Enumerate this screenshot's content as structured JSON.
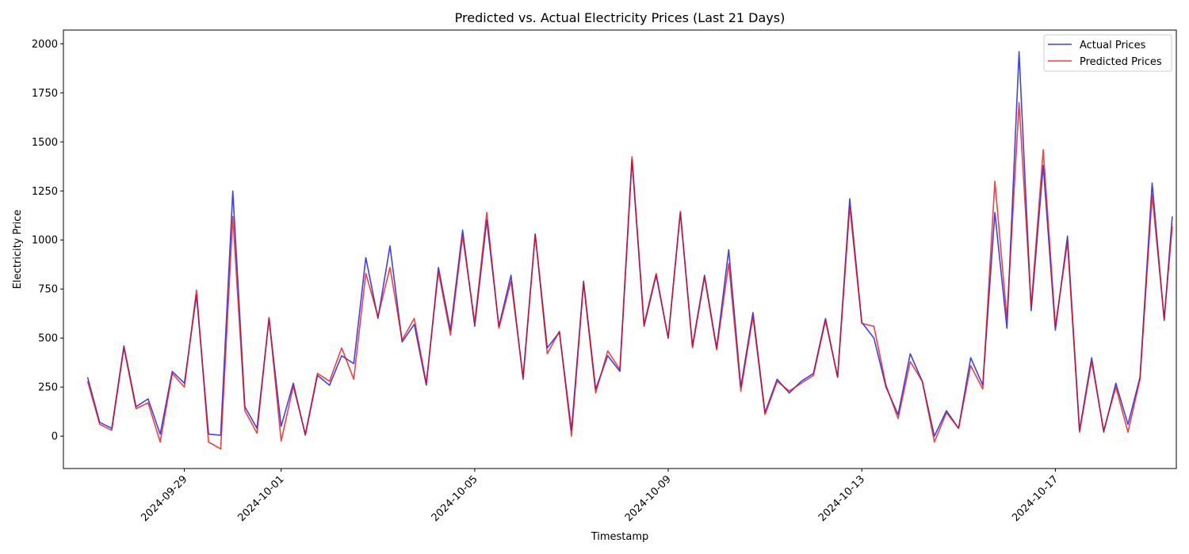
{
  "chart_data": {
    "type": "line",
    "title": "Predicted vs. Actual Electricity Prices (Last 21 Days)",
    "xlabel": "Timestamp",
    "ylabel": "Electricity Price",
    "x_axis": {
      "type": "date",
      "range": [
        "2024-09-26T12:00",
        "2024-10-19T12:00"
      ],
      "ticks": [
        "2024-09-29",
        "2024-10-01",
        "2024-10-05",
        "2024-10-09",
        "2024-10-13",
        "2024-10-17"
      ]
    },
    "y_axis": {
      "range": [
        -165,
        2070
      ],
      "ticks": [
        0,
        250,
        500,
        750,
        1000,
        1250,
        1500,
        1750,
        2000
      ]
    },
    "legend": {
      "position": "top-right"
    },
    "grid": false,
    "series": [
      {
        "name": "Actual Prices",
        "color": "#0000ee",
        "points": [
          [
            "2024-09-27T00:00",
            300
          ],
          [
            "2024-09-27T06:00",
            70
          ],
          [
            "2024-09-27T12:00",
            40
          ],
          [
            "2024-09-27T18:00",
            460
          ],
          [
            "2024-09-28T00:00",
            150
          ],
          [
            "2024-09-28T06:00",
            190
          ],
          [
            "2024-09-28T12:00",
            10
          ],
          [
            "2024-09-28T18:00",
            330
          ],
          [
            "2024-09-29T00:00",
            270
          ],
          [
            "2024-09-29T06:00",
            720
          ],
          [
            "2024-09-29T12:00",
            10
          ],
          [
            "2024-09-29T18:00",
            5
          ],
          [
            "2024-09-30T00:00",
            1250
          ],
          [
            "2024-09-30T06:00",
            150
          ],
          [
            "2024-09-30T12:00",
            40
          ],
          [
            "2024-09-30T18:00",
            600
          ],
          [
            "2024-10-01T00:00",
            50
          ],
          [
            "2024-10-01T06:00",
            270
          ],
          [
            "2024-10-01T12:00",
            5
          ],
          [
            "2024-10-01T18:00",
            310
          ],
          [
            "2024-10-02T00:00",
            260
          ],
          [
            "2024-10-02T06:00",
            410
          ],
          [
            "2024-10-02T12:00",
            370
          ],
          [
            "2024-10-02T18:00",
            910
          ],
          [
            "2024-10-03T00:00",
            600
          ],
          [
            "2024-10-03T06:00",
            970
          ],
          [
            "2024-10-03T12:00",
            480
          ],
          [
            "2024-10-03T18:00",
            570
          ],
          [
            "2024-10-04T00:00",
            260
          ],
          [
            "2024-10-04T06:00",
            860
          ],
          [
            "2024-10-04T12:00",
            540
          ],
          [
            "2024-10-04T18:00",
            1050
          ],
          [
            "2024-10-05T00:00",
            560
          ],
          [
            "2024-10-05T06:00",
            1100
          ],
          [
            "2024-10-05T12:00",
            560
          ],
          [
            "2024-10-05T18:00",
            820
          ],
          [
            "2024-10-06T00:00",
            290
          ],
          [
            "2024-10-06T06:00",
            1030
          ],
          [
            "2024-10-06T12:00",
            450
          ],
          [
            "2024-10-06T18:00",
            530
          ],
          [
            "2024-10-07T00:00",
            30
          ],
          [
            "2024-10-07T06:00",
            790
          ],
          [
            "2024-10-07T12:00",
            240
          ],
          [
            "2024-10-07T18:00",
            410
          ],
          [
            "2024-10-08T00:00",
            330
          ],
          [
            "2024-10-08T06:00",
            1410
          ],
          [
            "2024-10-08T12:00",
            560
          ],
          [
            "2024-10-08T18:00",
            820
          ],
          [
            "2024-10-09T00:00",
            500
          ],
          [
            "2024-10-09T06:00",
            1140
          ],
          [
            "2024-10-09T12:00",
            460
          ],
          [
            "2024-10-09T18:00",
            820
          ],
          [
            "2024-10-10T00:00",
            450
          ],
          [
            "2024-10-10T06:00",
            950
          ],
          [
            "2024-10-10T12:00",
            250
          ],
          [
            "2024-10-10T18:00",
            630
          ],
          [
            "2024-10-11T00:00",
            120
          ],
          [
            "2024-10-11T06:00",
            290
          ],
          [
            "2024-10-11T12:00",
            220
          ],
          [
            "2024-10-11T18:00",
            280
          ],
          [
            "2024-10-12T00:00",
            320
          ],
          [
            "2024-10-12T06:00",
            600
          ],
          [
            "2024-10-12T12:00",
            300
          ],
          [
            "2024-10-12T18:00",
            1210
          ],
          [
            "2024-10-13T00:00",
            580
          ],
          [
            "2024-10-13T06:00",
            500
          ],
          [
            "2024-10-13T12:00",
            250
          ],
          [
            "2024-10-13T18:00",
            110
          ],
          [
            "2024-10-14T00:00",
            420
          ],
          [
            "2024-10-14T06:00",
            280
          ],
          [
            "2024-10-14T12:00",
            0
          ],
          [
            "2024-10-14T18:00",
            130
          ],
          [
            "2024-10-15T00:00",
            40
          ],
          [
            "2024-10-15T06:00",
            400
          ],
          [
            "2024-10-15T12:00",
            260
          ],
          [
            "2024-10-15T18:00",
            1140
          ],
          [
            "2024-10-16T00:00",
            550
          ],
          [
            "2024-10-16T06:00",
            1960
          ],
          [
            "2024-10-16T12:00",
            640
          ],
          [
            "2024-10-16T18:00",
            1380
          ],
          [
            "2024-10-17T00:00",
            540
          ],
          [
            "2024-10-17T06:00",
            1020
          ],
          [
            "2024-10-17T12:00",
            30
          ],
          [
            "2024-10-17T18:00",
            400
          ],
          [
            "2024-10-18T00:00",
            20
          ],
          [
            "2024-10-18T06:00",
            270
          ],
          [
            "2024-10-18T12:00",
            60
          ],
          [
            "2024-10-18T18:00",
            300
          ],
          [
            "2024-10-19T00:00",
            1290
          ],
          [
            "2024-10-19T06:00",
            590
          ],
          [
            "2024-10-19T10:00",
            1120
          ]
        ]
      },
      {
        "name": "Predicted Prices",
        "color": "#ee0000",
        "points": [
          [
            "2024-09-27T00:00",
            280
          ],
          [
            "2024-09-27T06:00",
            60
          ],
          [
            "2024-09-27T12:00",
            30
          ],
          [
            "2024-09-27T18:00",
            450
          ],
          [
            "2024-09-28T00:00",
            140
          ],
          [
            "2024-09-28T06:00",
            170
          ],
          [
            "2024-09-28T12:00",
            -30
          ],
          [
            "2024-09-28T18:00",
            320
          ],
          [
            "2024-09-29T00:00",
            250
          ],
          [
            "2024-09-29T06:00",
            745
          ],
          [
            "2024-09-29T12:00",
            -30
          ],
          [
            "2024-09-29T18:00",
            -65
          ],
          [
            "2024-09-30T00:00",
            1120
          ],
          [
            "2024-09-30T06:00",
            130
          ],
          [
            "2024-09-30T12:00",
            15
          ],
          [
            "2024-09-30T18:00",
            605
          ],
          [
            "2024-10-01T00:00",
            -25
          ],
          [
            "2024-10-01T06:00",
            255
          ],
          [
            "2024-10-01T12:00",
            10
          ],
          [
            "2024-10-01T18:00",
            320
          ],
          [
            "2024-10-02T00:00",
            280
          ],
          [
            "2024-10-02T06:00",
            450
          ],
          [
            "2024-10-02T12:00",
            290
          ],
          [
            "2024-10-02T18:00",
            830
          ],
          [
            "2024-10-03T00:00",
            610
          ],
          [
            "2024-10-03T06:00",
            860
          ],
          [
            "2024-10-03T12:00",
            490
          ],
          [
            "2024-10-03T18:00",
            600
          ],
          [
            "2024-10-04T00:00",
            270
          ],
          [
            "2024-10-04T06:00",
            840
          ],
          [
            "2024-10-04T12:00",
            515
          ],
          [
            "2024-10-04T18:00",
            1020
          ],
          [
            "2024-10-05T00:00",
            580
          ],
          [
            "2024-10-05T06:00",
            1140
          ],
          [
            "2024-10-05T12:00",
            550
          ],
          [
            "2024-10-05T18:00",
            790
          ],
          [
            "2024-10-06T00:00",
            300
          ],
          [
            "2024-10-06T06:00",
            1030
          ],
          [
            "2024-10-06T12:00",
            420
          ],
          [
            "2024-10-06T18:00",
            535
          ],
          [
            "2024-10-07T00:00",
            0
          ],
          [
            "2024-10-07T06:00",
            780
          ],
          [
            "2024-10-07T12:00",
            220
          ],
          [
            "2024-10-07T18:00",
            435
          ],
          [
            "2024-10-08T00:00",
            340
          ],
          [
            "2024-10-08T06:00",
            1425
          ],
          [
            "2024-10-08T12:00",
            570
          ],
          [
            "2024-10-08T18:00",
            830
          ],
          [
            "2024-10-09T00:00",
            500
          ],
          [
            "2024-10-09T06:00",
            1145
          ],
          [
            "2024-10-09T12:00",
            450
          ],
          [
            "2024-10-09T18:00",
            810
          ],
          [
            "2024-10-10T00:00",
            440
          ],
          [
            "2024-10-10T06:00",
            880
          ],
          [
            "2024-10-10T12:00",
            230
          ],
          [
            "2024-10-10T18:00",
            610
          ],
          [
            "2024-10-11T00:00",
            110
          ],
          [
            "2024-10-11T06:00",
            280
          ],
          [
            "2024-10-11T12:00",
            230
          ],
          [
            "2024-10-11T18:00",
            270
          ],
          [
            "2024-10-12T00:00",
            310
          ],
          [
            "2024-10-12T06:00",
            590
          ],
          [
            "2024-10-12T12:00",
            300
          ],
          [
            "2024-10-12T18:00",
            1170
          ],
          [
            "2024-10-13T00:00",
            575
          ],
          [
            "2024-10-13T06:00",
            560
          ],
          [
            "2024-10-13T12:00",
            260
          ],
          [
            "2024-10-13T18:00",
            90
          ],
          [
            "2024-10-14T00:00",
            380
          ],
          [
            "2024-10-14T06:00",
            280
          ],
          [
            "2024-10-14T12:00",
            -30
          ],
          [
            "2024-10-14T18:00",
            120
          ],
          [
            "2024-10-15T00:00",
            40
          ],
          [
            "2024-10-15T06:00",
            360
          ],
          [
            "2024-10-15T12:00",
            240
          ],
          [
            "2024-10-15T18:00",
            1300
          ],
          [
            "2024-10-16T00:00",
            600
          ],
          [
            "2024-10-16T06:00",
            1700
          ],
          [
            "2024-10-16T12:00",
            660
          ],
          [
            "2024-10-16T18:00",
            1460
          ],
          [
            "2024-10-17T00:00",
            560
          ],
          [
            "2024-10-17T06:00",
            990
          ],
          [
            "2024-10-17T12:00",
            20
          ],
          [
            "2024-10-17T18:00",
            380
          ],
          [
            "2024-10-18T00:00",
            30
          ],
          [
            "2024-10-18T06:00",
            250
          ],
          [
            "2024-10-18T12:00",
            20
          ],
          [
            "2024-10-18T18:00",
            290
          ],
          [
            "2024-10-19T00:00",
            1230
          ],
          [
            "2024-10-19T06:00",
            600
          ],
          [
            "2024-10-19T10:00",
            1070
          ]
        ]
      }
    ]
  }
}
